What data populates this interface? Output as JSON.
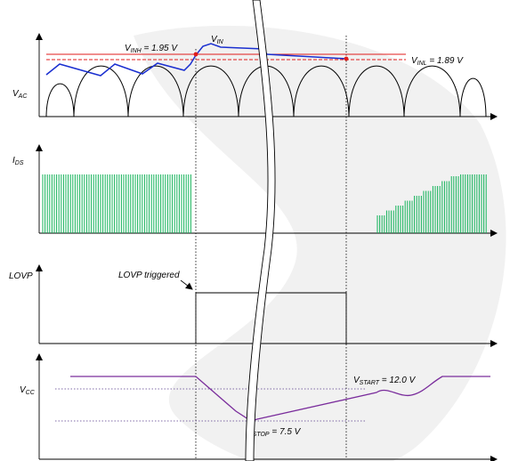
{
  "colors": {
    "axis": "#000000",
    "vac": "#000000",
    "vin": "#1a2fd0",
    "threshold": "#e01b1b",
    "ids": "#14b35a",
    "vcc": "#7a2d9c",
    "vcc_ref": "#5a3d8c",
    "watermark": "#f1f1f1"
  },
  "panels": {
    "vac": {
      "label_main": "V",
      "label_sub": "AC"
    },
    "ids": {
      "label_main": "I",
      "label_sub": "DS"
    },
    "lovp": {
      "label": "LOVP"
    },
    "vcc": {
      "label_main": "V",
      "label_sub": "CC"
    }
  },
  "annotations": {
    "vinh": {
      "main": "V",
      "sub": "INH",
      "value": " = 1.95 V"
    },
    "vin": {
      "main": "V",
      "sub": "IN"
    },
    "vinl": {
      "main": "V",
      "sub": "INL",
      "value": " = 1.89 V"
    },
    "lovp_triggered": "LOVP triggered",
    "vstart": {
      "main": "V",
      "sub": "START",
      "value": " = 12.0 V"
    },
    "vstop": {
      "main": "V",
      "sub": "STOP",
      "value": " = 7.5 V"
    }
  }
}
